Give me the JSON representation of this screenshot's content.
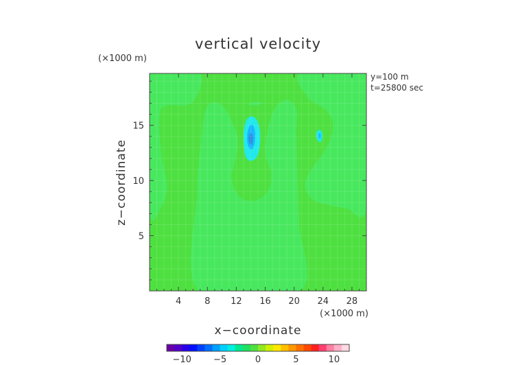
{
  "chart_data": {
    "type": "heatmap",
    "title": "vertical velocity",
    "xlabel": "x−coordinate",
    "ylabel": "z−coordinate",
    "x_unit_label": "(×1000 m)",
    "y_unit_label": "(×1000 m)",
    "info_lines": [
      "y=100 m",
      "t=25800 sec"
    ],
    "xlim": [
      0,
      30
    ],
    "ylim": [
      0,
      19.7
    ],
    "x_ticks": [
      4,
      8,
      12,
      16,
      20,
      24,
      28
    ],
    "x_tick_labels": [
      "4",
      "8",
      "12",
      "16",
      "20",
      "24",
      "28"
    ],
    "y_ticks": [
      5,
      10,
      15
    ],
    "y_tick_labels": [
      "5",
      "10",
      "15"
    ],
    "colorbar": {
      "min": -12,
      "max": 12,
      "ticks": [
        -10,
        -5,
        0,
        5,
        10
      ],
      "tick_labels": [
        "−10",
        "−5",
        "0",
        "5",
        "10"
      ],
      "colors": [
        "#6a00a8",
        "#5200c8",
        "#2a00e8",
        "#0010ff",
        "#0040ff",
        "#0070ff",
        "#00a0ff",
        "#00d0ff",
        "#00f0e0",
        "#00e890",
        "#20e060",
        "#50e040",
        "#90e820",
        "#d0f000",
        "#ffe800",
        "#ffc000",
        "#ff9800",
        "#ff7000",
        "#ff4800",
        "#ff2020",
        "#ff4070",
        "#ff80a0",
        "#ffb0c8",
        "#ffd8e4"
      ]
    },
    "background_color": "#4ee040",
    "regions": [
      {
        "name": "central-updraft-region",
        "value": 1.0,
        "color": "#48e85e",
        "outline": [
          [
            6.8,
            0
          ],
          [
            20.8,
            0
          ],
          [
            20.7,
            6
          ],
          [
            20.5,
            10
          ],
          [
            20.3,
            14.5
          ],
          [
            20.4,
            16
          ],
          [
            20,
            16.9
          ],
          [
            18.7,
            17.3
          ],
          [
            17.3,
            16.5
          ],
          [
            16.3,
            14.5
          ],
          [
            16,
            12.4
          ],
          [
            16.8,
            10.7
          ],
          [
            16.5,
            9.2
          ],
          [
            15.1,
            8.3
          ],
          [
            13.4,
            8.2
          ],
          [
            12.1,
            8.8
          ],
          [
            11.3,
            10.3
          ],
          [
            11.8,
            11.7
          ],
          [
            12.2,
            13.6
          ],
          [
            11.4,
            15.3
          ],
          [
            10.2,
            16.7
          ],
          [
            8.8,
            17.1
          ],
          [
            7.7,
            16.3
          ],
          [
            7.2,
            14.1
          ],
          [
            6.8,
            11.5
          ],
          [
            6.6,
            9
          ]
        ]
      },
      {
        "name": "left-updraft-region",
        "value": 1.0,
        "color": "#48e85e",
        "outline": [
          [
            0,
            7.3
          ],
          [
            1.6,
            7.6
          ],
          [
            2.4,
            9.5
          ],
          [
            1.6,
            12.5
          ],
          [
            1.4,
            16
          ],
          [
            2.4,
            16.8
          ],
          [
            4.9,
            16.8
          ],
          [
            6.4,
            17.5
          ],
          [
            6.8,
            19.7
          ],
          [
            0,
            19.7
          ]
        ]
      },
      {
        "name": "right-updraft-region",
        "value": 1.0,
        "color": "#48e85e",
        "outline": [
          [
            30,
            7.6
          ],
          [
            27.2,
            7.5
          ],
          [
            24.7,
            7.8
          ],
          [
            22.5,
            8.3
          ],
          [
            21.5,
            9.6
          ],
          [
            22.4,
            11
          ],
          [
            24.5,
            13
          ],
          [
            25.4,
            15
          ],
          [
            24.5,
            16.3
          ],
          [
            23.2,
            16.9
          ],
          [
            21.8,
            17.6
          ],
          [
            20.9,
            19.7
          ],
          [
            30,
            19.7
          ]
        ]
      },
      {
        "name": "small-updraft-region",
        "value": 1.0,
        "color": "#48e85e",
        "outline": [
          [
            13.6,
            16.9
          ],
          [
            14.6,
            17.1
          ],
          [
            15.6,
            17
          ],
          [
            14.6,
            16.8
          ]
        ]
      },
      {
        "name": "downdraft-outer-region",
        "value": -2.0,
        "color": "#22e8ea",
        "outline": [
          [
            13.2,
            12.4
          ],
          [
            13,
            14
          ],
          [
            13.3,
            15.3
          ],
          [
            14,
            15.8
          ],
          [
            14.8,
            15.5
          ],
          [
            15.3,
            14.4
          ],
          [
            15.2,
            12.9
          ],
          [
            14.7,
            12
          ],
          [
            13.8,
            11.8
          ]
        ]
      },
      {
        "name": "downdraft-inner-region",
        "value": -3.0,
        "color": "#1ab6ff",
        "outline": [
          [
            13.6,
            13.2
          ],
          [
            13.5,
            14.1
          ],
          [
            13.8,
            14.9
          ],
          [
            14.3,
            15
          ],
          [
            14.6,
            14.3
          ],
          [
            14.5,
            13.3
          ],
          [
            14.1,
            12.8
          ]
        ]
      },
      {
        "name": "downdraft-core-region",
        "value": -4.0,
        "color": "#2a90e0",
        "outline": [
          [
            13.8,
            13.4
          ],
          [
            13.7,
            14
          ],
          [
            14,
            14.3
          ],
          [
            14.3,
            14
          ],
          [
            14.2,
            13.3
          ]
        ]
      },
      {
        "name": "right-downdraft-outer-region",
        "value": -2.0,
        "color": "#22e8ea",
        "outline": [
          [
            23.2,
            13.7
          ],
          [
            23.1,
            14.3
          ],
          [
            23.5,
            14.6
          ],
          [
            23.9,
            14.2
          ],
          [
            23.7,
            13.5
          ]
        ]
      },
      {
        "name": "right-downdraft-inner-region",
        "value": -3.0,
        "color": "#1ab6ff",
        "outline": [
          [
            23.4,
            13.9
          ],
          [
            23.4,
            14.2
          ],
          [
            23.6,
            14.3
          ],
          [
            23.7,
            14
          ],
          [
            23.6,
            13.8
          ]
        ]
      }
    ]
  }
}
